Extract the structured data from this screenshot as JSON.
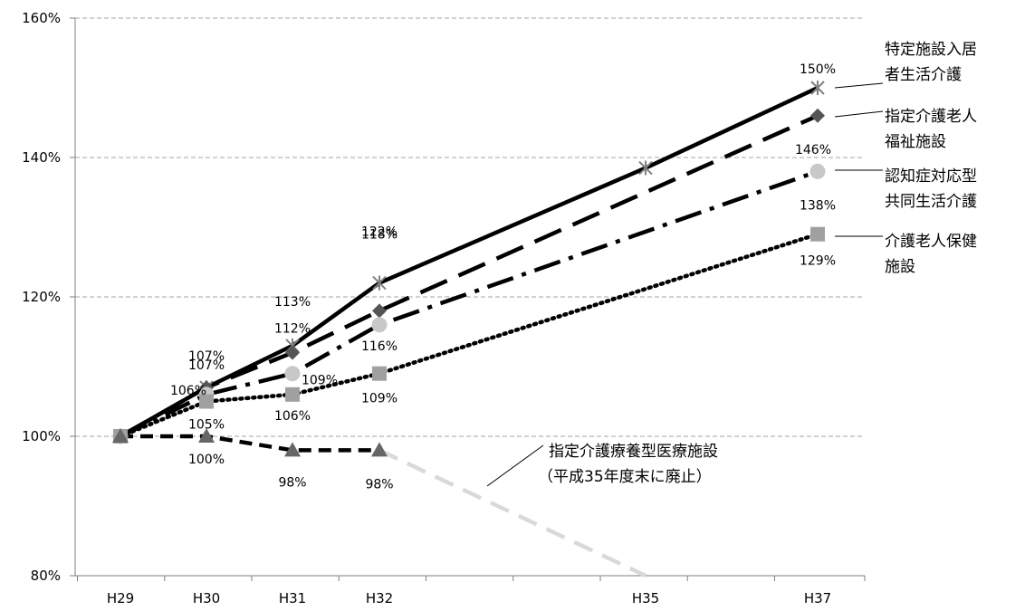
{
  "chart_data": {
    "type": "line",
    "x": [
      "H29",
      "H30",
      "H31",
      "H32",
      "H35",
      "H37"
    ],
    "ylim": [
      80,
      160
    ],
    "yticks": [
      "80%",
      "100%",
      "120%",
      "140%",
      "160%"
    ],
    "grid": true,
    "series": [
      {
        "name": "特定施設入居者生活介護",
        "name_lines": [
          "特定施設入居",
          "者生活介護"
        ],
        "marker": "star",
        "dash": "solid",
        "color": "#000000",
        "marker_color": "#808080",
        "points": [
          {
            "x": "H29",
            "y": 100
          },
          {
            "x": "H30",
            "y": 107
          },
          {
            "x": "H31",
            "y": 113
          },
          {
            "x": "H32",
            "y": 122
          },
          {
            "x": "H35",
            "y": 138.5
          },
          {
            "x": "H37",
            "y": 150
          }
        ],
        "labels": [
          null,
          "107%",
          "113%",
          "122%",
          null,
          "150%"
        ]
      },
      {
        "name": "指定介護老人福祉施設",
        "name_lines": [
          "指定介護老人",
          "福祉施設"
        ],
        "marker": "diamond",
        "dash": "longdash",
        "color": "#000000",
        "marker_color": "#555555",
        "points": [
          {
            "x": "H29",
            "y": 100
          },
          {
            "x": "H30",
            "y": 107
          },
          {
            "x": "H31",
            "y": 112
          },
          {
            "x": "H32",
            "y": 118
          },
          {
            "x": "H37",
            "y": 146
          }
        ],
        "labels": [
          null,
          "107%",
          "112%",
          "118%",
          "146%"
        ]
      },
      {
        "name": "認知症対応型共同生活介護",
        "name_lines": [
          "認知症対応型",
          "共同生活介護"
        ],
        "marker": "circle",
        "dash": "dashdot",
        "color": "#000000",
        "marker_color": "#c8c8c8",
        "points": [
          {
            "x": "H29",
            "y": 100
          },
          {
            "x": "H30",
            "y": 106
          },
          {
            "x": "H31",
            "y": 109
          },
          {
            "x": "H32",
            "y": 116
          },
          {
            "x": "H37",
            "y": 138
          }
        ],
        "labels": [
          null,
          "106%",
          "109%",
          "116%",
          "138%"
        ]
      },
      {
        "name": "介護老人保健施設",
        "name_lines": [
          "介護老人保健",
          "施設"
        ],
        "marker": "square",
        "dash": "dot",
        "color": "#000000",
        "marker_color": "#a0a0a0",
        "points": [
          {
            "x": "H29",
            "y": 100
          },
          {
            "x": "H30",
            "y": 105
          },
          {
            "x": "H31",
            "y": 106
          },
          {
            "x": "H32",
            "y": 109
          },
          {
            "x": "H37",
            "y": 129
          }
        ],
        "labels": [
          null,
          "105%",
          "106%",
          "109%",
          "129%"
        ]
      },
      {
        "name": "指定介護療養型医療施設",
        "name_lines": [
          "指定介護療養型医療施設",
          "（平成35年度末に廃止）"
        ],
        "marker": "triangle",
        "dash": "shortdash",
        "color": "#000000",
        "marker_color": "#666666",
        "points": [
          {
            "x": "H29",
            "y": 100
          },
          {
            "x": "H30",
            "y": 100
          },
          {
            "x": "H31",
            "y": 98
          },
          {
            "x": "H32",
            "y": 98
          }
        ],
        "labels": [
          null,
          "100%",
          "98%",
          "98%"
        ],
        "projection": {
          "color": "#d9d9d9",
          "points": [
            {
              "x": "H32",
              "y": 98
            },
            {
              "x": "H35",
              "y": 80
            }
          ]
        }
      }
    ]
  }
}
